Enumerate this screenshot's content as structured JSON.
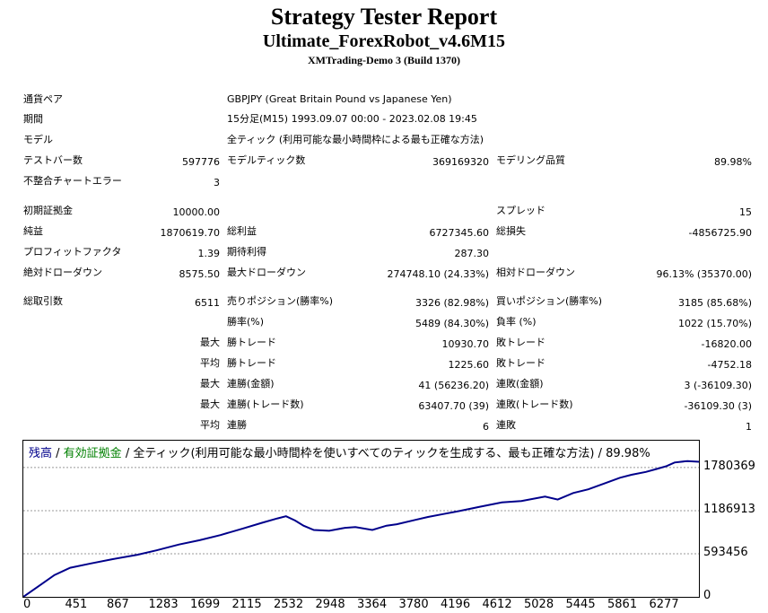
{
  "header": {
    "title": "Strategy Tester Report",
    "robot": "Ultimate_ForexRobot_v4.6M15",
    "server": "XMTrading-Demo 3 (Build 1370)"
  },
  "info": {
    "pair_label": "通貨ペア",
    "pair_value": "GBPJPY (Great Britain Pound vs Japanese Yen)",
    "period_label": "期間",
    "period_value": "15分足(M15) 1993.09.07 00:00 - 2023.02.08 19:45",
    "model_label": "モデル",
    "model_value": "全ティック (利用可能な最小時間枠による最も正確な方法)",
    "bars_label": "テストバー数",
    "bars_value": "597776",
    "ticks_label": "モデルティック数",
    "ticks_value": "369169320",
    "quality_label": "モデリング品質",
    "quality_value": "89.98%",
    "errors_label": "不整合チャートエラー",
    "errors_value": "3"
  },
  "stats": {
    "deposit_label": "初期証拠金",
    "deposit_value": "10000.00",
    "spread_label": "スプレッド",
    "spread_value": "15",
    "net_label": "純益",
    "net_value": "1870619.70",
    "gross_profit_label": "総利益",
    "gross_profit_value": "6727345.60",
    "gross_loss_label": "総損失",
    "gross_loss_value": "-4856725.90",
    "pf_label": "プロフィットファクタ",
    "pf_value": "1.39",
    "expected_label": "期待利得",
    "expected_value": "287.30",
    "abs_dd_label": "絶対ドローダウン",
    "abs_dd_value": "8575.50",
    "max_dd_label": "最大ドローダウン",
    "max_dd_value": "274748.10 (24.33%)",
    "rel_dd_label": "相対ドローダウン",
    "rel_dd_value": "96.13% (35370.00)",
    "trades_label": "総取引数",
    "trades_value": "6511",
    "short_label": "売りポジション(勝率%)",
    "short_value": "3326 (82.98%)",
    "long_label": "買いポジション(勝率%)",
    "long_value": "3185 (85.68%)",
    "winrate_label": "勝率(%)",
    "winrate_value": "5489 (84.30%)",
    "lossrate_label": "負率 (%)",
    "lossrate_value": "1022 (15.70%)",
    "max_label": "最大",
    "avg_label": "平均",
    "win_trade_label": "勝トレード",
    "loss_trade_label": "敗トレード",
    "max_win_value": "10930.70",
    "max_loss_value": "-16820.00",
    "avg_win_value": "1225.60",
    "avg_loss_value": "-4752.18",
    "cons_win_money_label": "連勝(金額)",
    "cons_win_money_value": "41 (56236.20)",
    "cons_loss_money_label": "連敗(金額)",
    "cons_loss_money_value": "3 (-36109.30)",
    "cons_win_trades_label": "連勝(トレード数)",
    "cons_win_trades_value": "63407.70 (39)",
    "cons_loss_trades_label": "連敗(トレード数)",
    "cons_loss_trades_value": "-36109.30 (3)",
    "avg_cons_win_label": "連勝",
    "avg_cons_win_value": "6",
    "avg_cons_loss_label": "連敗",
    "avg_cons_loss_value": "1"
  },
  "chart_legend": {
    "balance": "残高",
    "sep1": " / ",
    "equity": "有効証拠金",
    "rest": " / 全ティック(利用可能な最小時間枠を使いすべてのティックを生成する、最も正確な方法) / 89.98%",
    "balance_color": "#00008b",
    "equity_color": "#008000"
  },
  "chart_data": {
    "type": "line",
    "title": "",
    "xlabel": "",
    "ylabel": "",
    "x_ticks": [
      "0",
      "451",
      "867",
      "1283",
      "1699",
      "2115",
      "2532",
      "2948",
      "3364",
      "3780",
      "4196",
      "4612",
      "5028",
      "5445",
      "5861",
      "6277"
    ],
    "y_ticks": [
      "0",
      "593456",
      "1186913",
      "1780369"
    ],
    "xlim": [
      0,
      6511
    ],
    "ylim": [
      0,
      2150000
    ],
    "grid": true,
    "series": [
      {
        "name": "残高",
        "color": "#00008b",
        "x": [
          0,
          150,
          300,
          451,
          650,
          867,
          1100,
          1283,
          1500,
          1699,
          1900,
          2115,
          2300,
          2450,
          2532,
          2620,
          2700,
          2800,
          2948,
          3100,
          3200,
          3364,
          3500,
          3600,
          3780,
          3900,
          4050,
          4196,
          4400,
          4612,
          4800,
          5028,
          5150,
          5300,
          5445,
          5600,
          5750,
          5861,
          6000,
          6100,
          6200,
          6277,
          6400,
          6511
        ],
        "y": [
          0,
          150000,
          300000,
          400000,
          460000,
          520000,
          580000,
          640000,
          720000,
          780000,
          850000,
          940000,
          1020000,
          1080000,
          1110000,
          1050000,
          980000,
          920000,
          910000,
          950000,
          960000,
          920000,
          980000,
          1000000,
          1060000,
          1100000,
          1140000,
          1180000,
          1240000,
          1300000,
          1320000,
          1380000,
          1340000,
          1430000,
          1480000,
          1560000,
          1640000,
          1680000,
          1720000,
          1760000,
          1800000,
          1850000,
          1870000,
          1860000
        ]
      }
    ]
  }
}
